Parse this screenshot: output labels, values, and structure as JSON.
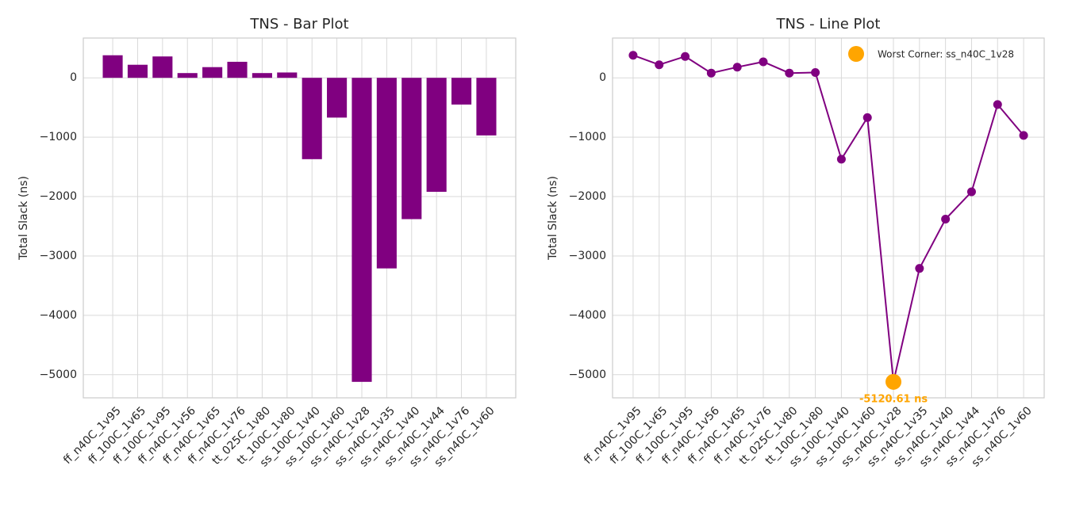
{
  "chart_data": [
    {
      "type": "bar",
      "title": "TNS - Bar Plot",
      "y_label": "Total Slack (ns)",
      "categories": [
        "ff_n40C_1v95",
        "ff_100C_1v65",
        "ff_100C_1v95",
        "ff_n40C_1v56",
        "ff_n40C_1v65",
        "ff_n40C_1v76",
        "tt_025C_1v80",
        "tt_100C_1v80",
        "ss_100C_1v40",
        "ss_100C_1v60",
        "ss_n40C_1v28",
        "ss_n40C_1v35",
        "ss_n40C_1v40",
        "ss_n40C_1v44",
        "ss_n40C_1v76",
        "ss_n40C_1v60"
      ],
      "values": [
        380,
        220,
        360,
        80,
        180,
        270,
        80,
        90,
        -1370,
        -670,
        -5120.61,
        -3210,
        -2380,
        -1920,
        -450,
        -970
      ],
      "color": "#800080",
      "ylim": [
        -5390,
        670
      ],
      "yticks": [
        {
          "value": -5000,
          "label": "−5000"
        },
        {
          "value": -4000,
          "label": "−4000"
        },
        {
          "value": -3000,
          "label": "−3000"
        },
        {
          "value": -2000,
          "label": "−2000"
        },
        {
          "value": -1000,
          "label": "−1000"
        },
        0
      ],
      "grid": true
    },
    {
      "type": "line",
      "title": "TNS - Line Plot",
      "y_label": "Total Slack (ns)",
      "categories": [
        "ff_n40C_1v95",
        "ff_100C_1v65",
        "ff_100C_1v95",
        "ff_n40C_1v56",
        "ff_n40C_1v65",
        "ff_n40C_1v76",
        "tt_025C_1v80",
        "tt_100C_1v80",
        "ss_100C_1v40",
        "ss_100C_1v60",
        "ss_n40C_1v28",
        "ss_n40C_1v35",
        "ss_n40C_1v40",
        "ss_n40C_1v44",
        "ss_n40C_1v76",
        "ss_n40C_1v60"
      ],
      "values": [
        380,
        220,
        360,
        80,
        180,
        270,
        80,
        90,
        -1370,
        -670,
        -5120.61,
        -3210,
        -2380,
        -1920,
        -450,
        -970
      ],
      "color": "#800080",
      "highlight": {
        "name": "Worst Corner: ss_n40C_1v28",
        "x": "ss_n40C_1v28",
        "value": -5120.61,
        "value_label": "-5120.61 ns",
        "color": "#ffa500"
      },
      "legend": "upper right",
      "ylim": [
        -5390,
        670
      ],
      "yticks": [
        {
          "value": -5000,
          "label": "−5000"
        },
        {
          "value": -4000,
          "label": "−4000"
        },
        {
          "value": -3000,
          "label": "−3000"
        },
        {
          "value": -2000,
          "label": "−2000"
        },
        {
          "value": -1000,
          "label": "−1000"
        },
        0
      ],
      "grid": true
    }
  ]
}
